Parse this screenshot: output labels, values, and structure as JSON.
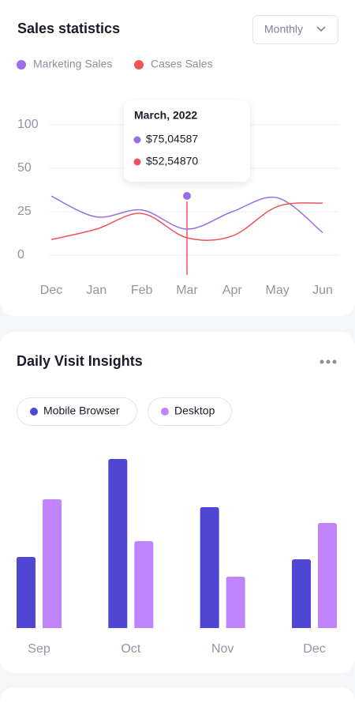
{
  "chart_data": [
    {
      "type": "line",
      "title": "Sales statistics",
      "dropdown": "Monthly",
      "categories": [
        "Dec",
        "Jan",
        "Feb",
        "Mar",
        "Apr",
        "May",
        "Jun"
      ],
      "series": [
        {
          "name": "Marketing Sales",
          "color": "#9b6ee6",
          "values": [
            34,
            22,
            26,
            15,
            25,
            33,
            13
          ]
        },
        {
          "name": "Cases Sales",
          "color": "#f0545a",
          "values": [
            9,
            15,
            24,
            10,
            11,
            28,
            30
          ]
        }
      ],
      "ylim": [
        0,
        100
      ],
      "yticks": [
        0,
        25,
        50,
        100
      ],
      "grid": true,
      "tooltip": {
        "title": "March, 2022",
        "values": [
          "$75,04587",
          "$52,54870"
        ]
      }
    },
    {
      "type": "bar",
      "title": "Daily Visit Insights",
      "categories": [
        "Sep",
        "Oct",
        "Nov",
        "Dec"
      ],
      "series": [
        {
          "name": "Mobile Browser",
          "color": "#5046d4",
          "values": [
            90,
            214,
            153,
            87
          ]
        },
        {
          "name": "Desktop",
          "color": "#c084fc",
          "values": [
            163,
            110,
            65,
            133
          ]
        }
      ]
    }
  ]
}
